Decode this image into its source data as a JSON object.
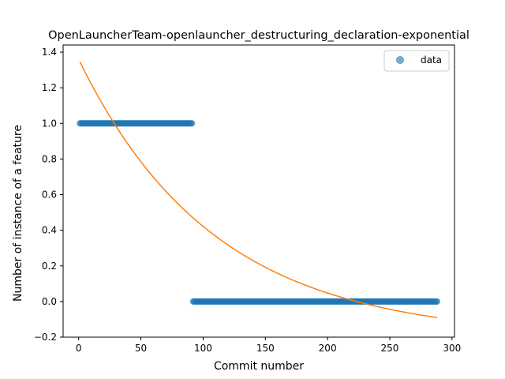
{
  "chart_data": {
    "type": "scatter",
    "title": "OpenLauncherTeam-openlauncher_destructuring_declaration-exponential",
    "xlabel": "Commit number",
    "ylabel": "Number of instance of a feature",
    "xlim": [
      -12.5,
      302
    ],
    "ylim": [
      -0.2,
      1.44
    ],
    "xticks": [
      0,
      50,
      100,
      150,
      200,
      250,
      300
    ],
    "yticks": [
      -0.2,
      0.0,
      0.2,
      0.4,
      0.6,
      0.8,
      1.0,
      1.2,
      1.4
    ],
    "xtick_labels": [
      "0",
      "50",
      "100",
      "150",
      "200",
      "250",
      "300"
    ],
    "ytick_labels": [
      "−0.2",
      "0.0",
      "0.2",
      "0.4",
      "0.6",
      "0.8",
      "1.0",
      "1.2",
      "1.4"
    ],
    "grid": false,
    "legend": {
      "position": "top-right",
      "entries": [
        "data"
      ]
    },
    "series": [
      {
        "name": "data",
        "kind": "scatter",
        "color": "#1f77b4",
        "segments": [
          {
            "x_start": 1,
            "x_end": 91,
            "y": 1.0
          },
          {
            "x_start": 92,
            "x_end": 288,
            "y": 0.0
          }
        ]
      },
      {
        "kind": "line",
        "color": "#ff7f0e",
        "model": "a*exp(-b*x)+c",
        "params": {
          "a": 1.56,
          "b": 0.0092,
          "c": -0.2
        },
        "x_range": [
          1,
          288
        ]
      }
    ]
  }
}
